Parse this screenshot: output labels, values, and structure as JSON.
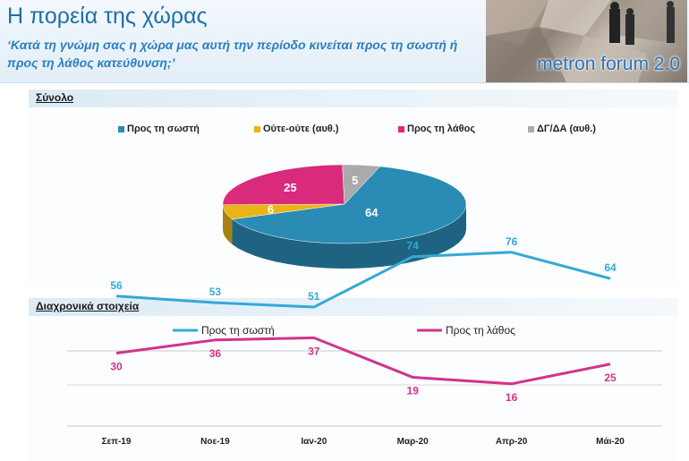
{
  "header": {
    "title": "Η πορεία της χώρας",
    "question": "‘Κατά τη γνώμη σας η χώρα μας αυτή την περίοδο κινείται προς τη σωστή ή προς τη λάθος κατεύθυνση;’",
    "logo_text": "metron forum 2.0"
  },
  "sections": {
    "total": "Σύνολο",
    "trend": "Διαχρονικά στοιχεία"
  },
  "colors": {
    "right": "#2a8bb4",
    "neither": "#e8b416",
    "wrong": "#d92a7c",
    "dk": "#a9aaaa",
    "line_right": "#35a9d6",
    "line_wrong": "#d2338a"
  },
  "chart_data": [
    {
      "type": "pie",
      "slices": [
        {
          "label": "Προς τη σωστή",
          "value": 64
        },
        {
          "label": "Ούτε-ούτε (αυθ.)",
          "value": 6
        },
        {
          "label": "Προς τη λάθος",
          "value": 25
        },
        {
          "label": "ΔΓ/ΔΑ (αυθ.)",
          "value": 5
        }
      ]
    },
    {
      "type": "line",
      "categories": [
        "Σεπ-19",
        "Νοε-19",
        "Ιαν-20",
        "Μαρ-20",
        "Απρ-20",
        "Μάι-20"
      ],
      "series": [
        {
          "name": "Προς τη σωστή",
          "values": [
            56,
            53,
            51,
            74,
            76,
            64
          ]
        },
        {
          "name": "Προς τη λάθος",
          "values": [
            30,
            36,
            37,
            19,
            16,
            25
          ]
        }
      ]
    }
  ]
}
